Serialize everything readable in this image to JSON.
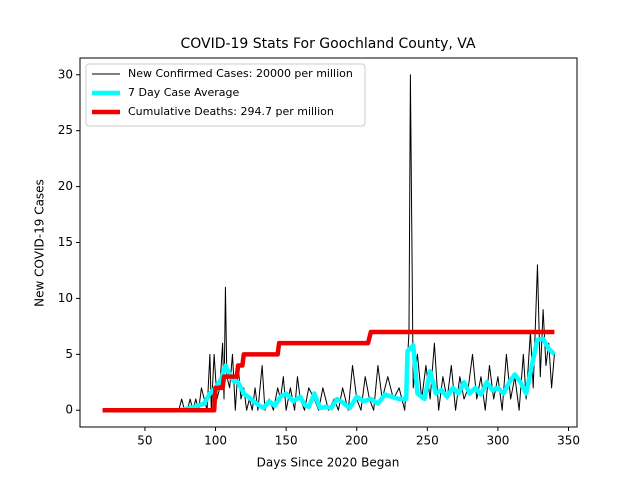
{
  "chart_data": {
    "type": "line",
    "title": "COVID-19 Stats For Goochland County, VA",
    "x_label": "Days Since 2020 Began",
    "y_label": "New COVID-19 Cases",
    "xlim": [
      4,
      356
    ],
    "ylim": [
      -1.5,
      31.5
    ],
    "xticks": [
      50,
      100,
      150,
      200,
      250,
      300,
      350
    ],
    "yticks": [
      0,
      5,
      10,
      15,
      20,
      25,
      30
    ],
    "legend": "upper left",
    "series": [
      {
        "name": "New Confirmed Cases: 20000 per million",
        "color": "#000000",
        "width": 1,
        "x": [
          20,
          74,
          76,
          78,
          80,
          82,
          84,
          86,
          88,
          90,
          92,
          94,
          96,
          97,
          99,
          101,
          103,
          105,
          106,
          107,
          108,
          110,
          112,
          114,
          116,
          118,
          120,
          122,
          124,
          126,
          128,
          130,
          133,
          135,
          138,
          141,
          144,
          146,
          148,
          150,
          153,
          156,
          158,
          160,
          163,
          166,
          170,
          173,
          176,
          180,
          184,
          187,
          190,
          194,
          197,
          200,
          203,
          206,
          209,
          212,
          215,
          218,
          222,
          226,
          230,
          234,
          237,
          238,
          240,
          243,
          246,
          249,
          252,
          255,
          258,
          261,
          264,
          267,
          270,
          273,
          276,
          279,
          282,
          285,
          288,
          291,
          294,
          297,
          300,
          303,
          306,
          309,
          312,
          315,
          318,
          320,
          323,
          325,
          328,
          330,
          332,
          334,
          336,
          338,
          340
        ],
        "values": [
          0,
          0,
          1,
          0,
          0,
          1,
          0,
          1,
          0,
          2,
          1,
          0,
          5,
          0,
          5,
          1,
          2,
          6,
          1,
          11,
          3,
          2,
          5,
          0,
          4,
          1,
          2,
          0,
          1,
          0,
          2,
          0,
          4,
          0,
          1,
          0,
          2,
          1,
          3,
          0,
          2,
          0,
          3,
          1,
          0,
          2,
          1,
          0,
          2,
          0,
          1,
          0,
          2,
          0,
          4,
          1,
          0,
          3,
          1,
          0,
          4,
          1,
          3,
          1,
          2,
          0,
          7,
          30,
          2,
          5,
          1,
          4,
          1,
          6,
          0,
          3,
          1,
          4,
          0,
          3,
          1,
          2,
          5,
          1,
          3,
          0,
          4,
          1,
          3,
          0,
          5,
          1,
          3,
          0,
          5,
          1,
          7,
          2,
          13,
          3,
          9,
          4,
          6,
          2,
          5
        ]
      },
      {
        "name": "7 Day Case Average",
        "color": "#00ffff",
        "width": 4.5,
        "x": [
          75,
          85,
          92,
          96,
          100,
          104,
          107,
          110,
          113,
          116,
          120,
          125,
          130,
          134,
          138,
          142,
          146,
          150,
          155,
          160,
          163,
          166,
          170,
          174,
          178,
          182,
          186,
          190,
          195,
          200,
          205,
          210,
          215,
          220,
          225,
          230,
          235,
          236,
          240,
          243,
          248,
          252,
          256,
          260,
          264,
          268,
          272,
          276,
          280,
          284,
          288,
          292,
          296,
          300,
          304,
          308,
          312,
          316,
          320,
          324,
          328,
          332,
          336,
          340
        ],
        "values": [
          0,
          0.3,
          0.6,
          1.5,
          2,
          2.8,
          4,
          3.2,
          2.6,
          2.5,
          1.5,
          1,
          0.5,
          0.2,
          0.8,
          0.4,
          1.2,
          1.5,
          0.8,
          1.2,
          0.5,
          0.3,
          1.5,
          0.2,
          0.3,
          0.2,
          1,
          0.7,
          0.2,
          1.2,
          0.8,
          1,
          0.6,
          1.4,
          1.2,
          1,
          1,
          5.3,
          5.8,
          1.5,
          1,
          3.5,
          1.5,
          1.8,
          1.2,
          2,
          1.5,
          2.5,
          1.5,
          2,
          1.4,
          2.5,
          1.8,
          2,
          1.5,
          2.5,
          3.2,
          2.5,
          1.5,
          4,
          6.3,
          6.4,
          5.5,
          5
        ]
      },
      {
        "name": "Cumulative Deaths: 294.7 per million",
        "color": "#ee0000",
        "width": 4.5,
        "x": [
          20,
          99,
          100,
          105,
          106,
          115,
          116,
          119,
          120,
          144,
          145,
          208,
          210,
          340
        ],
        "values": [
          0,
          0,
          2,
          2,
          3,
          3,
          4,
          4,
          5,
          5,
          6,
          6,
          7,
          7
        ]
      }
    ]
  }
}
